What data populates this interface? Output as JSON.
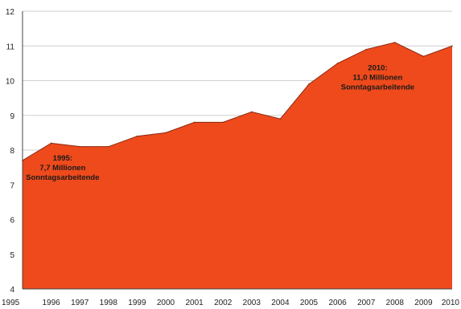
{
  "chart_data": {
    "type": "area",
    "title": "",
    "xlabel": "",
    "ylabel": "",
    "x": [
      1995,
      1996,
      1997,
      1998,
      1999,
      2000,
      2001,
      2002,
      2003,
      2004,
      2005,
      2006,
      2007,
      2008,
      2009,
      2010
    ],
    "x_tick_labels": [
      "1995",
      "1996",
      "1997",
      "1998",
      "1999",
      "2000",
      "2001",
      "2002",
      "2003",
      "2004",
      "2005",
      "2006",
      "2007",
      "2008",
      "2009",
      "2010"
    ],
    "series": [
      {
        "values": [
          7.7,
          8.2,
          8.1,
          8.1,
          8.4,
          8.5,
          8.8,
          8.8,
          9.1,
          8.9,
          9.9,
          10.5,
          10.9,
          11.1,
          10.7,
          11.0
        ]
      }
    ],
    "ylim": [
      4,
      12
    ],
    "y_ticks": [
      4,
      5,
      6,
      7,
      8,
      9,
      10,
      11,
      12
    ],
    "y_tick_labels": [
      "4",
      "5",
      "6",
      "7",
      "8",
      "9",
      "10",
      "11",
      "12"
    ],
    "grid": true,
    "annotations": [
      {
        "x": 1996.4,
        "y": 7.7,
        "lines": [
          "1995:",
          "7,7 Millionen",
          "Sonntagsarbeitende"
        ]
      },
      {
        "x": 2007.4,
        "y": 10.3,
        "lines": [
          "2010:",
          "11,0 Millionen",
          "Sonntagsarbeitende"
        ]
      }
    ],
    "colors": {
      "fill": "#ee4a1c",
      "grid": "#cfcfcf"
    }
  }
}
